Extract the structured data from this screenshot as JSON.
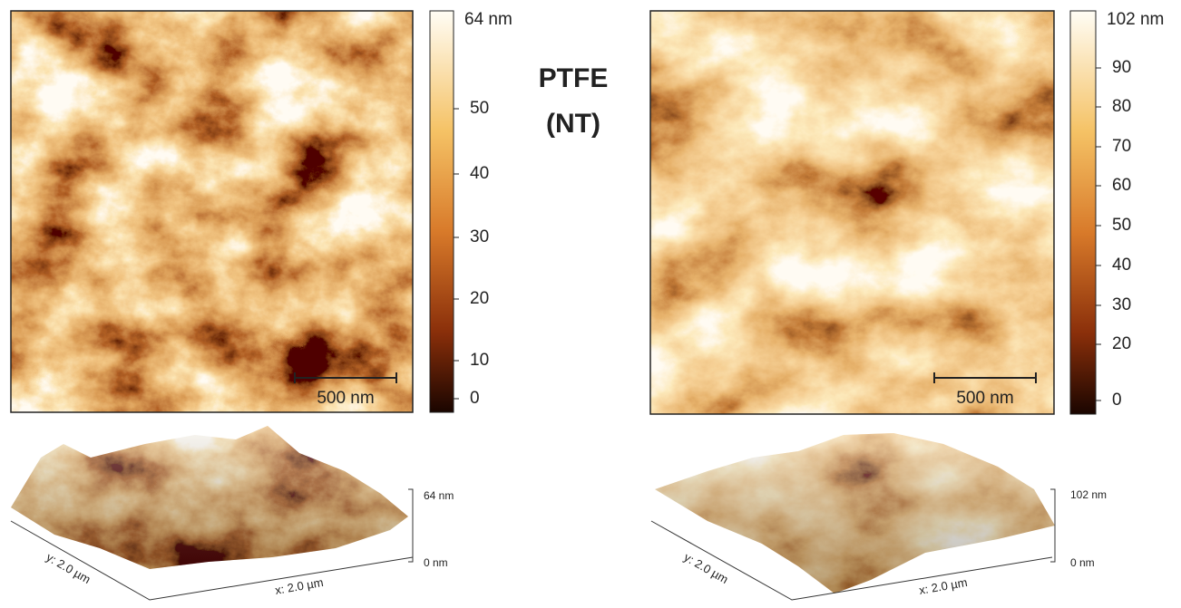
{
  "label": {
    "line1": "PTFE",
    "line2": "(NT)"
  },
  "panels": [
    {
      "colorbar": {
        "top_label": "64 nm",
        "tick_labels": [
          "50",
          "40",
          "30",
          "20",
          "10",
          "0"
        ]
      },
      "scale_bar": "500 nm",
      "surface_3d": {
        "z_max": "64 nm",
        "z_min": "0 nm",
        "y_axis": "y: 2.0 µm",
        "x_axis": "x: 2.0 µm"
      }
    },
    {
      "colorbar": {
        "top_label": "102 nm",
        "tick_labels": [
          "90",
          "80",
          "70",
          "60",
          "50",
          "40",
          "30",
          "20",
          "0"
        ]
      },
      "scale_bar": "500 nm",
      "surface_3d": {
        "z_max": "102 nm",
        "z_min": "0 nm",
        "y_axis": "y: 2.0 µm",
        "x_axis": "x: 2.0 µm"
      }
    }
  ]
}
